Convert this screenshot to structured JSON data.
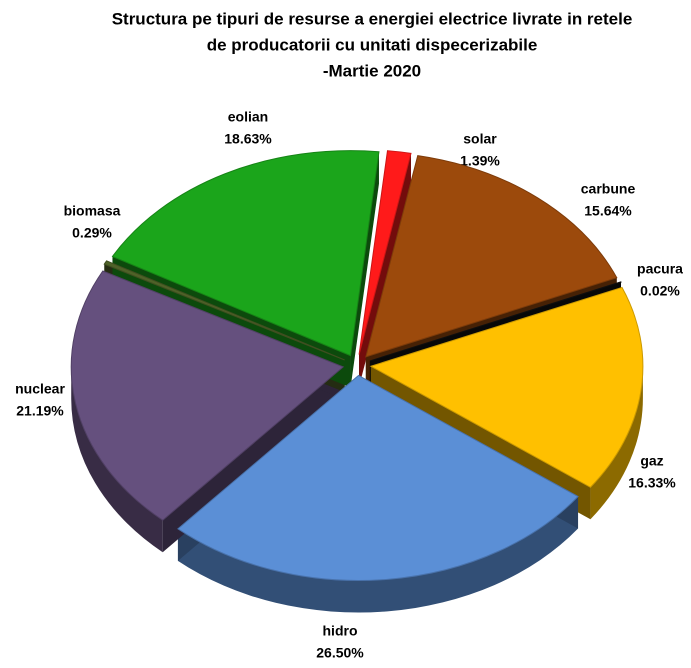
{
  "chart_data": {
    "type": "pie",
    "title": [
      "Structura pe tipuri de resurse a energiei electrice livrate in retele",
      "de producatorii cu unitati dispecerizabile",
      "-Martie 2020"
    ],
    "categories": [
      "solar",
      "carbune",
      "pacura",
      "gaz",
      "hidro",
      "nuclear",
      "biomasa",
      "eolian"
    ],
    "values": [
      1.39,
      15.64,
      0.02,
      16.33,
      26.5,
      21.19,
      0.29,
      18.63
    ],
    "value_labels": [
      "1.39%",
      "15.64%",
      "0.02%",
      "16.33%",
      "26.50%",
      "21.19%",
      "0.29%",
      "18.63%"
    ],
    "colors": [
      "#ff1a1a",
      "#9c4a0c",
      "#111111",
      "#ffc000",
      "#5b8fd6",
      "#65507e",
      "#4f6228",
      "#1ba51b"
    ]
  }
}
